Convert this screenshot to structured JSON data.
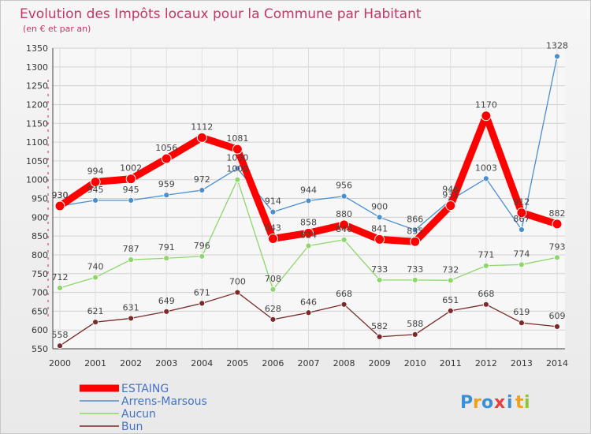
{
  "chart_data": {
    "type": "line",
    "title": "Evolution des Impôts locaux pour la Commune par Habitant",
    "subtitle": "(en € et par an)",
    "x": [
      "2000",
      "2001",
      "2002",
      "2003",
      "2004",
      "2005",
      "2006",
      "2007",
      "2008",
      "2009",
      "2010",
      "2011",
      "2012",
      "2013",
      "2014"
    ],
    "yticks": [
      550,
      600,
      650,
      700,
      750,
      800,
      850,
      900,
      950,
      1000,
      1050,
      1100,
      1150,
      1200,
      1250,
      1300,
      1350
    ],
    "ylim": [
      550,
      1350
    ],
    "grid": true,
    "legend_position": "bottom-left",
    "series": [
      {
        "name": "ESTAING",
        "color": "#ff0000",
        "values": [
          930,
          994,
          1002,
          1056,
          1112,
          1081,
          843,
          858,
          880,
          841,
          835,
          931,
          1170,
          912,
          882
        ],
        "labels": [
          "930",
          "994",
          "1002",
          "1056",
          "1112",
          "1081",
          "843",
          "858",
          "880",
          "841",
          "835",
          "931",
          "1170",
          "912",
          "882"
        ]
      },
      {
        "name": "Arrens-Marsous",
        "color": "#4b8ed0",
        "values": [
          930,
          945,
          945,
          959,
          972,
          1030,
          914,
          944,
          956,
          900,
          866,
          946,
          1003,
          867,
          1328
        ],
        "labels": [
          "930",
          "945",
          "945",
          "959",
          "972",
          "1030",
          "914",
          "944",
          "956",
          "900",
          "866",
          "946",
          "1003",
          "867",
          "1328"
        ]
      },
      {
        "name": "Aucun",
        "color": "#8ed66b",
        "values": [
          712,
          740,
          787,
          791,
          796,
          1000,
          708,
          824,
          840,
          733,
          733,
          732,
          771,
          774,
          793
        ],
        "labels": [
          "712",
          "740",
          "787",
          "791",
          "796",
          "1000",
          "708",
          "824",
          "840",
          "733",
          "733",
          "732",
          "771",
          "774",
          "793"
        ]
      },
      {
        "name": "Bun",
        "color": "#7a2a2a",
        "values": [
          558,
          621,
          631,
          649,
          671,
          700,
          628,
          646,
          668,
          582,
          588,
          651,
          668,
          619,
          609
        ],
        "labels": [
          "558",
          "621",
          "631",
          "649",
          "671",
          "700",
          "628",
          "646",
          "668",
          "582",
          "588",
          "651",
          "668",
          "619",
          "609"
        ]
      }
    ]
  },
  "logo": {
    "letters": [
      "P",
      "r",
      "o",
      "x",
      "i",
      "t",
      "i"
    ],
    "colors": [
      "#3a8fd6",
      "#f0a020",
      "#3a8fd6",
      "#e04040",
      "#3a8fd6",
      "#f0a020",
      "#8ac53a"
    ]
  }
}
